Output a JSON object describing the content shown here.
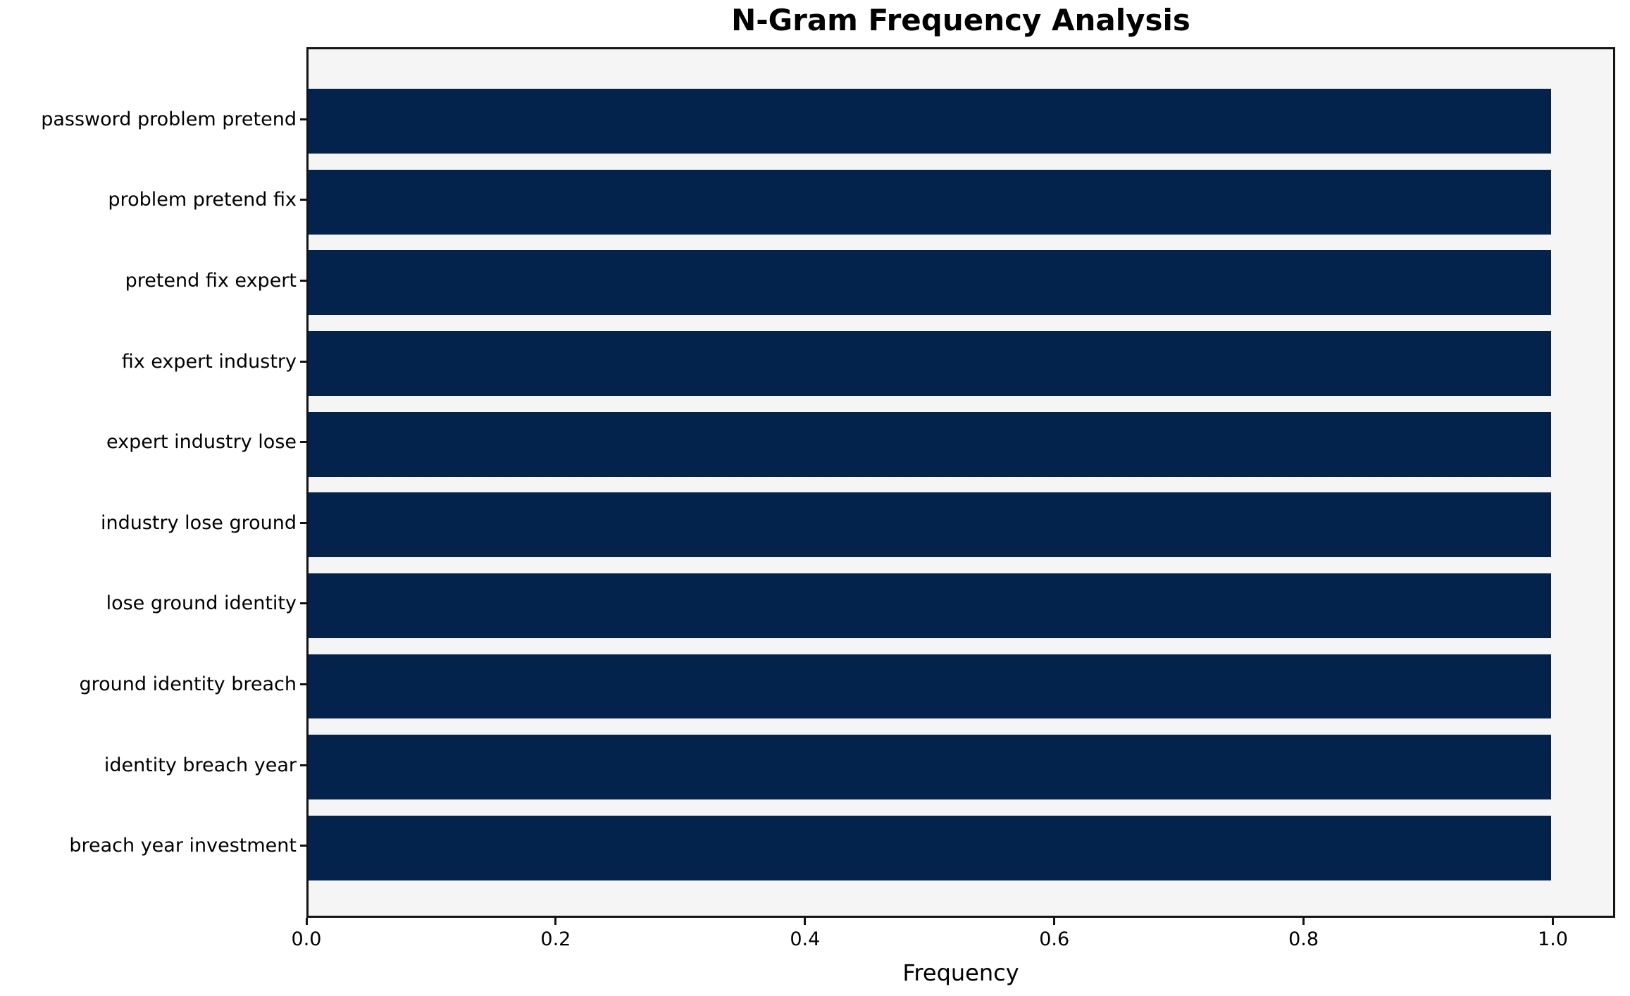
{
  "title": "N-Gram Frequency Analysis",
  "chart_data": {
    "type": "bar",
    "orientation": "horizontal",
    "title": "N-Gram Frequency Analysis",
    "xlabel": "Frequency",
    "ylabel": "",
    "categories": [
      "password problem pretend",
      "problem pretend fix",
      "pretend fix expert",
      "fix expert industry",
      "expert industry lose",
      "industry lose ground",
      "lose ground identity",
      "ground identity breach",
      "identity breach year",
      "breach year investment"
    ],
    "values": [
      1.0,
      1.0,
      1.0,
      1.0,
      1.0,
      1.0,
      1.0,
      1.0,
      1.0,
      1.0
    ],
    "x_tick_values": [
      0.0,
      0.2,
      0.4,
      0.6,
      0.8,
      1.0
    ],
    "x_tick_labels": [
      "0.0",
      "0.2",
      "0.4",
      "0.6",
      "0.8",
      "1.0"
    ],
    "xlim": [
      0,
      1.05
    ],
    "bar_frac": 0.8,
    "grid": false,
    "legend": null,
    "bar_color": "#03234c",
    "plot_bg": "#f5f5f5",
    "figure_bg": "#ffffff",
    "text_color": "#000000"
  }
}
